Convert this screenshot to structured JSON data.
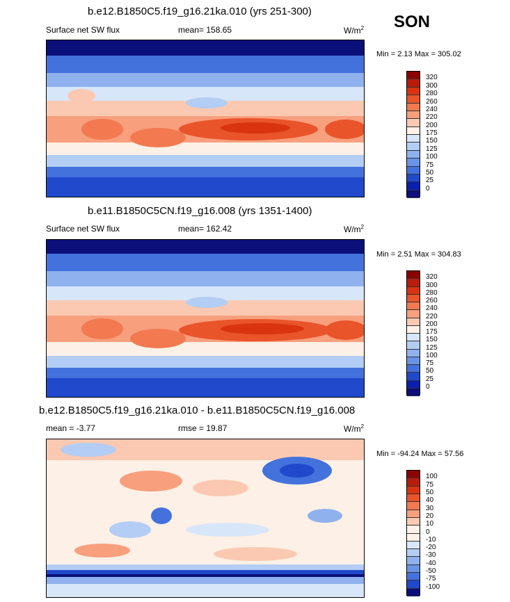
{
  "season": "SON",
  "panels": [
    {
      "title": "b.e12.B1850C5.f19_g16.21ka.010 (yrs 251-300)",
      "variable": "Surface net SW flux",
      "stat1": "mean= 158.65",
      "stat2": "",
      "units": "W/m",
      "units_exp": "2",
      "minmax": "Min =   2.13 Max = 305.02",
      "levels": [
        "320",
        "300",
        "280",
        "260",
        "240",
        "220",
        "200",
        "175",
        "150",
        "125",
        "100",
        "75",
        "50",
        "25",
        "0"
      ],
      "colors": [
        "#8b0000",
        "#b81c0b",
        "#d8340f",
        "#e9542b",
        "#f27950",
        "#f89f7d",
        "#fbc9b1",
        "#fdf0e6",
        "#d8e6f9",
        "#b3cdf4",
        "#8fb2ee",
        "#6a94e6",
        "#4472dc",
        "#2049cc",
        "#0a1fb0",
        "#0b0f7a"
      ]
    },
    {
      "title": "b.e11.B1850C5CN.f19_g16.008 (yrs 1351-1400)",
      "variable": "Surface net SW flux",
      "stat1": "mean= 162.42",
      "stat2": "",
      "units": "W/m",
      "units_exp": "2",
      "minmax": "Min =   2.51 Max = 304.83",
      "levels": [
        "320",
        "300",
        "280",
        "260",
        "240",
        "220",
        "200",
        "175",
        "150",
        "125",
        "100",
        "75",
        "50",
        "25",
        "0"
      ],
      "colors": [
        "#8b0000",
        "#b81c0b",
        "#d8340f",
        "#e9542b",
        "#f27950",
        "#f89f7d",
        "#fbc9b1",
        "#fdf0e6",
        "#d8e6f9",
        "#b3cdf4",
        "#8fb2ee",
        "#6a94e6",
        "#4472dc",
        "#2049cc",
        "#0a1fb0",
        "#0b0f7a"
      ]
    },
    {
      "title": "b.e12.B1850C5.f19_g16.21ka.010 - b.e11.B1850C5CN.f19_g16.008",
      "variable": "",
      "stat1": "mean =  -3.77",
      "stat2": "rmse =  19.87",
      "units": "W/m",
      "units_exp": "2",
      "minmax": "Min = -94.24 Max =  57.56",
      "levels": [
        "100",
        "75",
        "50",
        "40",
        "30",
        "20",
        "10",
        "0",
        "-10",
        "-20",
        "-30",
        "-40",
        "-50",
        "-75",
        "-100"
      ],
      "colors": [
        "#8b0000",
        "#b81c0b",
        "#d8340f",
        "#e9542b",
        "#f27950",
        "#f89f7d",
        "#fbc9b1",
        "#fdf0e6",
        "#fdf0e6",
        "#d8e6f9",
        "#b3cdf4",
        "#8fb2ee",
        "#6a94e6",
        "#4472dc",
        "#2049cc",
        "#0b0f7a"
      ]
    }
  ],
  "chart_data": {
    "type": "heatmap",
    "panels": [
      {
        "title": "b.e12.B1850C5.f19_g16.21ka.010 (yrs 251-300)",
        "variable": "Surface net SW flux",
        "units": "W/m2",
        "mean": 158.65,
        "min": 2.13,
        "max": 305.02,
        "contour_levels": [
          0,
          25,
          50,
          75,
          100,
          125,
          150,
          175,
          200,
          220,
          240,
          260,
          280,
          300,
          320
        ]
      },
      {
        "title": "b.e11.B1850C5CN.f19_g16.008 (yrs 1351-1400)",
        "variable": "Surface net SW flux",
        "units": "W/m2",
        "mean": 162.42,
        "min": 2.51,
        "max": 304.83,
        "contour_levels": [
          0,
          25,
          50,
          75,
          100,
          125,
          150,
          175,
          200,
          220,
          240,
          260,
          280,
          300,
          320
        ]
      },
      {
        "title": "b.e12.B1850C5.f19_g16.21ka.010 - b.e11.B1850C5CN.f19_g16.008",
        "units": "W/m2",
        "mean": -3.77,
        "rmse": 19.87,
        "min": -94.24,
        "max": 57.56,
        "contour_levels": [
          -100,
          -75,
          -50,
          -40,
          -30,
          -20,
          -10,
          0,
          10,
          20,
          30,
          40,
          50,
          75,
          100
        ]
      }
    ]
  }
}
